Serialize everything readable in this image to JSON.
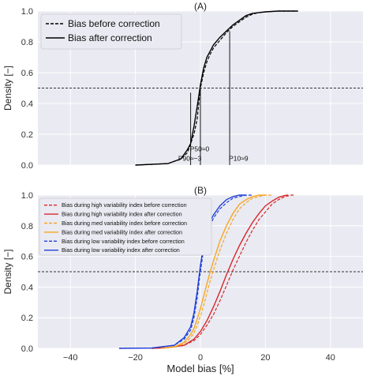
{
  "chart_data": [
    {
      "type": "line",
      "title": "(A)",
      "xlabel": "",
      "ylabel": "Density [−]",
      "xlim": [
        -50,
        50
      ],
      "ylim": [
        0,
        1.0
      ],
      "x_ticks": [],
      "y_ticks": [
        "0.0",
        "0.2",
        "0.4",
        "0.6",
        "0.8",
        "1.0"
      ],
      "grid": true,
      "legend_position": "upper-left",
      "series": [
        {
          "name": "Bias before correction",
          "style": "dashed",
          "color": "#000000",
          "x": [
            -20,
            -10,
            -6,
            -4,
            -2,
            -1,
            0,
            1,
            2,
            3,
            4,
            6,
            8,
            9,
            10,
            12,
            14,
            16,
            18,
            20,
            24,
            28,
            30
          ],
          "y": [
            0.0,
            0.01,
            0.04,
            0.08,
            0.2,
            0.3,
            0.5,
            0.6,
            0.67,
            0.72,
            0.76,
            0.81,
            0.86,
            0.88,
            0.9,
            0.93,
            0.96,
            0.98,
            0.99,
            0.995,
            1.0,
            1.0,
            1.0
          ]
        },
        {
          "name": "Bias after correction",
          "style": "solid",
          "color": "#000000",
          "x": [
            -20,
            -10,
            -6,
            -4,
            -3,
            -2,
            -1,
            0,
            1,
            2,
            3,
            4,
            6,
            8,
            9,
            10,
            12,
            14,
            16,
            18,
            20,
            24,
            28,
            30
          ],
          "y": [
            0.0,
            0.01,
            0.04,
            0.1,
            0.14,
            0.25,
            0.38,
            0.52,
            0.63,
            0.7,
            0.74,
            0.78,
            0.83,
            0.87,
            0.89,
            0.91,
            0.94,
            0.97,
            0.985,
            0.99,
            0.995,
            1.0,
            1.0,
            1.0
          ]
        }
      ],
      "hline": 0.5,
      "annotations": [
        {
          "text": "P90≈−3",
          "x": -3,
          "y": 0.05,
          "line_to": 0.47
        },
        {
          "text": "P50≈0",
          "x": 0,
          "y": 0.11,
          "line_to": 0.5
        },
        {
          "text": "P10≈9",
          "x": 9,
          "y": 0.05,
          "line_to": 0.87
        }
      ]
    },
    {
      "type": "line",
      "title": "(B)",
      "xlabel": "Model bias [%]",
      "ylabel": "Density [−]",
      "xlim": [
        -50,
        50
      ],
      "ylim": [
        0,
        1.0
      ],
      "x_ticks": [
        "−40",
        "−20",
        "0",
        "20",
        "40"
      ],
      "y_ticks": [
        "0.0",
        "0.2",
        "0.4",
        "0.6",
        "0.8",
        "1.0"
      ],
      "grid": true,
      "legend_position": "upper-left",
      "series": [
        {
          "name": "Bias during high variability index before correction",
          "style": "dashed",
          "color": "#d62728",
          "x": [
            -15,
            -10,
            -5,
            -2,
            0,
            2,
            4,
            6,
            8,
            10,
            12,
            14,
            16,
            18,
            20,
            22,
            24,
            26,
            28,
            29
          ],
          "y": [
            0.0,
            0.005,
            0.02,
            0.05,
            0.09,
            0.15,
            0.22,
            0.31,
            0.41,
            0.51,
            0.6,
            0.69,
            0.77,
            0.84,
            0.89,
            0.94,
            0.97,
            0.99,
            1.0,
            1.0
          ]
        },
        {
          "name": "Bias during high variability index after correction",
          "style": "solid",
          "color": "#d62728",
          "x": [
            -15,
            -10,
            -5,
            -2,
            0,
            2,
            4,
            6,
            8,
            10,
            12,
            14,
            16,
            18,
            20,
            22,
            24,
            26,
            27
          ],
          "y": [
            0.0,
            0.005,
            0.02,
            0.06,
            0.11,
            0.18,
            0.27,
            0.37,
            0.48,
            0.58,
            0.67,
            0.75,
            0.82,
            0.88,
            0.93,
            0.96,
            0.985,
            0.998,
            1.0
          ]
        },
        {
          "name": "Bias during med variability index before correction",
          "style": "dashed",
          "color": "#f5a623",
          "x": [
            -12,
            -8,
            -5,
            -3,
            -2,
            -1,
            0,
            1,
            2,
            3,
            4,
            6,
            8,
            10,
            12,
            14,
            16,
            18,
            20,
            22
          ],
          "y": [
            0.0,
            0.01,
            0.03,
            0.07,
            0.1,
            0.15,
            0.21,
            0.28,
            0.36,
            0.44,
            0.51,
            0.64,
            0.75,
            0.84,
            0.91,
            0.95,
            0.98,
            0.99,
            1.0,
            1.0
          ]
        },
        {
          "name": "Bias during med variability index after correction",
          "style": "solid",
          "color": "#f5a623",
          "x": [
            -12,
            -8,
            -5,
            -3,
            -2,
            -1,
            0,
            1,
            2,
            3,
            4,
            6,
            8,
            10,
            12,
            14,
            16,
            18,
            20
          ],
          "y": [
            0.0,
            0.01,
            0.04,
            0.09,
            0.13,
            0.19,
            0.26,
            0.34,
            0.42,
            0.5,
            0.57,
            0.7,
            0.8,
            0.88,
            0.94,
            0.97,
            0.99,
            1.0,
            1.0
          ]
        },
        {
          "name": "Bias during low variability index before correction",
          "style": "dashed",
          "color": "#1f3fd6",
          "x": [
            -25,
            -15,
            -8,
            -5,
            -3,
            -2,
            -1,
            0,
            1,
            2,
            3,
            4,
            6,
            8,
            10,
            12,
            14,
            16
          ],
          "y": [
            0.0,
            0.002,
            0.02,
            0.06,
            0.12,
            0.2,
            0.33,
            0.5,
            0.65,
            0.74,
            0.8,
            0.85,
            0.91,
            0.95,
            0.98,
            0.99,
            1.0,
            1.0
          ]
        },
        {
          "name": "Bias during low variability index after correction",
          "style": "solid",
          "color": "#1f3fd6",
          "x": [
            -25,
            -15,
            -8,
            -5,
            -3,
            -2,
            -1,
            0,
            1,
            2,
            3,
            4,
            6,
            8,
            10,
            12,
            14
          ],
          "y": [
            0.0,
            0.002,
            0.02,
            0.07,
            0.14,
            0.23,
            0.37,
            0.54,
            0.68,
            0.77,
            0.83,
            0.87,
            0.93,
            0.97,
            0.99,
            1.0,
            1.0
          ]
        }
      ],
      "hline": 0.5
    }
  ]
}
